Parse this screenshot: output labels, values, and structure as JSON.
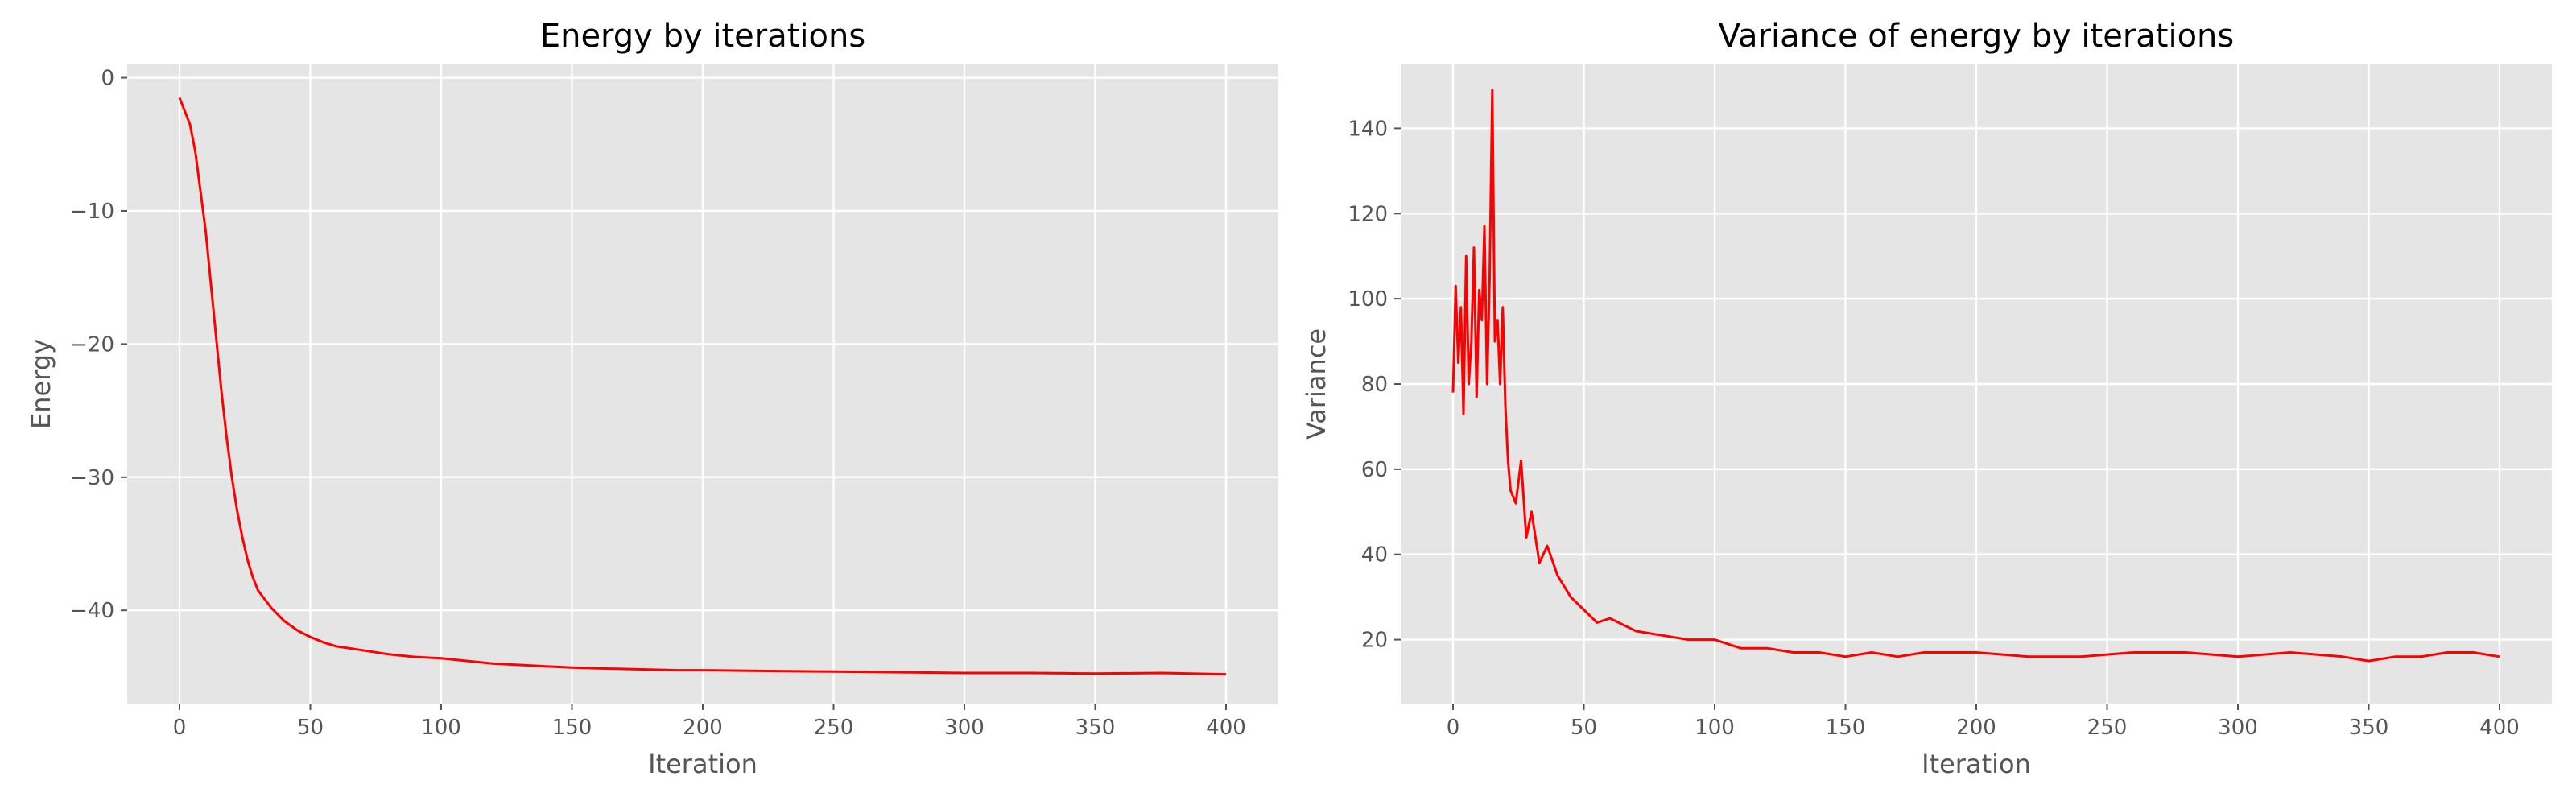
{
  "chart_data": [
    {
      "type": "line",
      "title": "Energy by iterations",
      "xlabel": "Iteration",
      "ylabel": "Energy",
      "xlim": [
        -20,
        420
      ],
      "ylim": [
        -47,
        1
      ],
      "xticks": [
        0,
        50,
        100,
        150,
        200,
        250,
        300,
        350,
        400
      ],
      "yticks": [
        0,
        -10,
        -20,
        -30,
        -40
      ],
      "ytick_labels": [
        "0",
        "−10",
        "−20",
        "−30",
        "−40"
      ],
      "grid": true,
      "series": [
        {
          "color": "#ff0000",
          "x": [
            0,
            2,
            4,
            6,
            8,
            10,
            12,
            14,
            16,
            18,
            20,
            22,
            24,
            26,
            28,
            30,
            35,
            40,
            45,
            50,
            55,
            60,
            70,
            80,
            90,
            100,
            110,
            120,
            130,
            140,
            150,
            160,
            170,
            180,
            190,
            200,
            225,
            250,
            275,
            300,
            325,
            350,
            375,
            400
          ],
          "y": [
            -1.5,
            -2.5,
            -3.5,
            -5.5,
            -8.5,
            -11.5,
            -15.5,
            -19.5,
            -23.5,
            -27,
            -30,
            -32.5,
            -34.5,
            -36.2,
            -37.5,
            -38.5,
            -39.8,
            -40.8,
            -41.5,
            -42.0,
            -42.4,
            -42.7,
            -43.0,
            -43.3,
            -43.5,
            -43.6,
            -43.8,
            -44.0,
            -44.1,
            -44.2,
            -44.3,
            -44.35,
            -44.4,
            -44.45,
            -44.5,
            -44.5,
            -44.55,
            -44.6,
            -44.65,
            -44.7,
            -44.7,
            -44.75,
            -44.7,
            -44.8
          ]
        }
      ]
    },
    {
      "type": "line",
      "title": "Variance of energy by iterations",
      "xlabel": "Iteration",
      "ylabel": "Variance",
      "xlim": [
        -20,
        420
      ],
      "ylim": [
        5,
        155
      ],
      "xticks": [
        0,
        50,
        100,
        150,
        200,
        250,
        300,
        350,
        400
      ],
      "yticks": [
        20,
        40,
        60,
        80,
        100,
        120,
        140
      ],
      "ytick_labels": [
        "20",
        "40",
        "60",
        "80",
        "100",
        "120",
        "140"
      ],
      "grid": true,
      "series": [
        {
          "color": "#ff0000",
          "x": [
            0,
            1,
            2,
            3,
            4,
            5,
            6,
            7,
            8,
            9,
            10,
            11,
            12,
            13,
            14,
            15,
            16,
            17,
            18,
            19,
            20,
            21,
            22,
            24,
            26,
            28,
            30,
            33,
            36,
            40,
            45,
            50,
            55,
            60,
            70,
            80,
            90,
            100,
            110,
            120,
            130,
            140,
            150,
            160,
            170,
            180,
            190,
            200,
            220,
            240,
            260,
            280,
            300,
            320,
            340,
            350,
            360,
            370,
            380,
            390,
            400
          ],
          "y": [
            78,
            103,
            85,
            98,
            73,
            110,
            80,
            90,
            112,
            77,
            102,
            95,
            117,
            80,
            105,
            149,
            90,
            95,
            80,
            98,
            75,
            62,
            55,
            52,
            62,
            44,
            50,
            38,
            42,
            35,
            30,
            27,
            24,
            25,
            22,
            21,
            20,
            20,
            18,
            18,
            17,
            17,
            16,
            17,
            16,
            17,
            17,
            17,
            16,
            16,
            17,
            17,
            16,
            17,
            16,
            15,
            16,
            16,
            17,
            17,
            16
          ]
        }
      ]
    }
  ]
}
